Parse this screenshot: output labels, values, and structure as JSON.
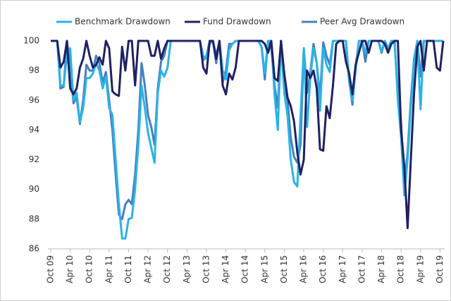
{
  "chart_data": {
    "type": "line",
    "categories": [
      "Oct 09",
      null,
      null,
      null,
      null,
      null,
      "Apr 10",
      null,
      null,
      null,
      null,
      null,
      "Oct 10",
      null,
      null,
      null,
      null,
      null,
      "Apr 11",
      null,
      null,
      null,
      null,
      null,
      "Oct 11",
      null,
      null,
      null,
      null,
      null,
      "Apr 12",
      null,
      null,
      null,
      null,
      null,
      "Oct 12",
      null,
      null,
      null,
      null,
      null,
      "Apr 13",
      null,
      null,
      null,
      null,
      null,
      "Oct 13",
      null,
      null,
      null,
      null,
      null,
      "Apr 14",
      null,
      null,
      null,
      null,
      null,
      "Oct 14",
      null,
      null,
      null,
      null,
      null,
      "Apr 15",
      null,
      null,
      null,
      null,
      null,
      "Oct 15",
      null,
      null,
      null,
      null,
      null,
      "Apr 16",
      null,
      null,
      null,
      null,
      null,
      "Oct 16",
      null,
      null,
      null,
      null,
      null,
      "Apr 17",
      null,
      null,
      null,
      null,
      null,
      "Oct 17",
      null,
      null,
      null,
      null,
      null,
      "Apr 18",
      null,
      null,
      null,
      null,
      null,
      "Oct 18",
      null,
      null,
      null,
      null,
      null,
      "Apr 19",
      null,
      null,
      null,
      null,
      null,
      "Oct 19",
      null
    ],
    "series": [
      {
        "name": "Benchmark Drawdown",
        "color": "#2bb3e6",
        "values": [
          100,
          100,
          100,
          97.0,
          97.0,
          99.0,
          99.5,
          96.0,
          96.5,
          94.5,
          95.5,
          97.5,
          97.5,
          97.8,
          98.5,
          98.0,
          96.8,
          97.6,
          95.5,
          95.0,
          92.0,
          89.0,
          86.7,
          86.7,
          88.0,
          88.1,
          90.0,
          93.0,
          97.0,
          95.5,
          93.8,
          92.8,
          91.8,
          96.5,
          98.0,
          97.6,
          98.2,
          100,
          100,
          100,
          100,
          100,
          100,
          100,
          100,
          100,
          100,
          99.0,
          98.8,
          99.8,
          100,
          99.0,
          100,
          98.0,
          97.4,
          99.4,
          99.8,
          100,
          100,
          100,
          100,
          100,
          100,
          100,
          100,
          99.6,
          97.8,
          100,
          100,
          96.4,
          94.0,
          100,
          96.5,
          95.0,
          92.0,
          90.5,
          90.2,
          95.0,
          99.5,
          94.2,
          97.5,
          99.5,
          98.5,
          95.3,
          99.5,
          98.4,
          97.9,
          100,
          100,
          100,
          100,
          100,
          97.2,
          96.0,
          98.0,
          100,
          100,
          99.2,
          100,
          100,
          100,
          100,
          99.3,
          100,
          99.5,
          100,
          100,
          96.0,
          93.5,
          89.6,
          92.0,
          95.5,
          98.5,
          100,
          95.4,
          100,
          100,
          100,
          100,
          100,
          100,
          100
        ]
      },
      {
        "name": "Fund Drawdown",
        "color": "#1f2163",
        "values": [
          100,
          100,
          100,
          98.2,
          98.6,
          100,
          96.8,
          96.4,
          96.8,
          98.2,
          98.8,
          100,
          99.0,
          98.2,
          98.4,
          98.9,
          98.4,
          100,
          99.5,
          96.6,
          96.4,
          96.3,
          99.6,
          98.0,
          100,
          100,
          97.0,
          100,
          100,
          100,
          100,
          99.0,
          99.0,
          100,
          98.8,
          99.5,
          100,
          100,
          100,
          100,
          100,
          100,
          100,
          100,
          100,
          100,
          100,
          98.2,
          97.8,
          100,
          100,
          98.8,
          100,
          97.0,
          96.4,
          97.8,
          97.4,
          98.2,
          100,
          100,
          100,
          100,
          100,
          100,
          100,
          100,
          99.8,
          99.2,
          100,
          97.5,
          97.3,
          100,
          97.8,
          96.2,
          95.6,
          94.6,
          92.5,
          91.0,
          92.0,
          98.0,
          97.5,
          98.0,
          96.8,
          92.7,
          92.6,
          95.6,
          94.8,
          97.0,
          99.8,
          100,
          100,
          98.6,
          97.8,
          96.4,
          98.4,
          99.2,
          100,
          100,
          99.2,
          100,
          100,
          100,
          100,
          99.8,
          99.2,
          99.8,
          100,
          100,
          94.0,
          91.5,
          87.4,
          92.0,
          96.5,
          99.6,
          100,
          98.0,
          100,
          100,
          100,
          98.2,
          98.0,
          100
        ]
      },
      {
        "name": "Peer Avg Drawdown",
        "color": "#4380c2",
        "values": [
          100,
          100,
          100,
          96.8,
          96.9,
          100,
          98.3,
          95.8,
          96.2,
          94.4,
          96.0,
          98.4,
          98.0,
          98.0,
          99.0,
          98.5,
          97.2,
          97.9,
          96.0,
          94.0,
          91.0,
          88.3,
          88.0,
          89.0,
          89.3,
          89.0,
          91.0,
          94.0,
          98.5,
          97.0,
          95.0,
          94.2,
          93.0,
          96.8,
          98.6,
          99.0,
          100,
          100,
          100,
          100,
          100,
          100,
          100,
          100,
          100,
          100,
          100,
          98.7,
          99.0,
          100,
          100,
          98.5,
          100,
          97.2,
          98.0,
          99.8,
          99.8,
          100,
          100,
          100,
          100,
          100,
          100,
          100,
          100,
          99.6,
          97.4,
          100,
          99.5,
          97.0,
          95.5,
          100,
          97.0,
          96.0,
          93.5,
          92.2,
          91.8,
          93.0,
          99.5,
          96.5,
          97.8,
          99.8,
          98.5,
          96.2,
          99.9,
          99.0,
          98.4,
          100,
          100,
          100,
          100,
          100,
          97.4,
          95.7,
          98.3,
          100,
          100,
          98.6,
          100,
          100,
          100,
          100,
          99.2,
          100,
          99.5,
          100,
          99.8,
          96.5,
          94.5,
          90.3,
          92.5,
          96.0,
          98.8,
          100,
          97.6,
          100,
          100,
          100,
          100,
          100,
          100,
          100
        ]
      }
    ],
    "ylim": [
      86,
      100
    ],
    "yticks": [
      86,
      88,
      90,
      92,
      94,
      96,
      98,
      100
    ],
    "grid": false,
    "legend": "top"
  }
}
